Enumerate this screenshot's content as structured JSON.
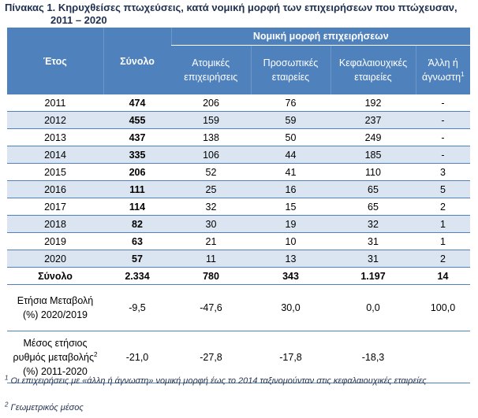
{
  "title": {
    "line1": "Πίνακας 1. Κηρυχθείσες πτωχεύσεις, κατά νομική μορφή των επιχειρήσεων που πτώχευσαν,",
    "line2": "2011 – 2020"
  },
  "headers": {
    "year": "Έτος",
    "total": "Σύνολο",
    "group": "Νομική μορφή επιχειρήσεων",
    "sole_line1": "Ατομικές",
    "sole_line2": "επιχειρήσεις",
    "partner_line1": "Προσωπικές",
    "partner_line2": "εταιρείες",
    "capital_line1": "Κεφαλαιουχικές",
    "capital_line2": "εταιρείες",
    "other_line1": "Άλλη ή",
    "other_line2": "άγνωστη",
    "other_sup": "1"
  },
  "rows": [
    {
      "year": "2011",
      "total": "474",
      "sole": "206",
      "partner": "76",
      "capital": "192",
      "other": "-"
    },
    {
      "year": "2012",
      "total": "455",
      "sole": "159",
      "partner": "59",
      "capital": "237",
      "other": "-"
    },
    {
      "year": "2013",
      "total": "437",
      "sole": "138",
      "partner": "50",
      "capital": "249",
      "other": "-"
    },
    {
      "year": "2014",
      "total": "335",
      "sole": "106",
      "partner": "44",
      "capital": "185",
      "other": "-"
    },
    {
      "year": "2015",
      "total": "206",
      "sole": "52",
      "partner": "41",
      "capital": "110",
      "other": "3"
    },
    {
      "year": "2016",
      "total": "111",
      "sole": "25",
      "partner": "16",
      "capital": "65",
      "other": "5"
    },
    {
      "year": "2017",
      "total": "114",
      "sole": "32",
      "partner": "15",
      "capital": "65",
      "other": "2"
    },
    {
      "year": "2018",
      "total": "82",
      "sole": "30",
      "partner": "19",
      "capital": "32",
      "other": "1"
    },
    {
      "year": "2019",
      "total": "63",
      "sole": "21",
      "partner": "10",
      "capital": "31",
      "other": "1"
    },
    {
      "year": "2020",
      "total": "57",
      "sole": "11",
      "partner": "13",
      "capital": "31",
      "other": "2"
    }
  ],
  "sum": {
    "label": "Σύνολο",
    "total": "2.334",
    "sole": "780",
    "partner": "343",
    "capital": "1.197",
    "other": "14"
  },
  "change": {
    "label_line1": "Ετήσια Μεταβολή",
    "label_line2": "(%) 2020/2019",
    "total": "-9,5",
    "sole": "-47,6",
    "partner": "30,0",
    "capital": "0,0",
    "other": "100,0"
  },
  "avg": {
    "label_line1": "Μέσος ετήσιος",
    "label_line2": "ρυθμός μεταβολής",
    "label_sup": "2",
    "label_line3": "(%) 2011-2020",
    "total": "-21,0",
    "sole": "-27,8",
    "partner": "-17,8",
    "capital": "-18,3",
    "other": ""
  },
  "footnotes": {
    "fn1_sup": "1",
    "fn1_text": " Οι επιχειρήσεις με «άλλη ή άγνωστη» νομική μορφή έως το 2014 ταξινομούνταν στις κεφαλαιουχικές εταιρείες",
    "fn2_sup": "2",
    "fn2_text": " Γεωμετρικός μέσος"
  },
  "colors": {
    "header": "#4f81bd",
    "stripe": "#dbe5f1",
    "title": "#1f2f4f"
  }
}
